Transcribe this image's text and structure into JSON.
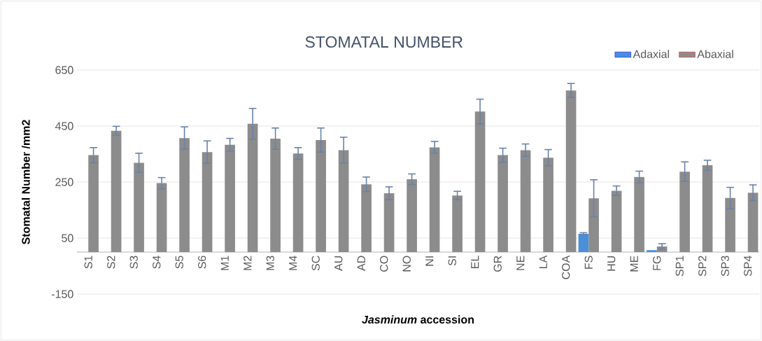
{
  "chart_data": {
    "type": "bar",
    "title": "STOMATAL NUMBER",
    "xlabel": "*Jasminum* accession",
    "ylabel": "Stomatal Number /mm2",
    "categories": [
      "S1",
      "S2",
      "S3",
      "S4",
      "S5",
      "S6",
      "M1",
      "M2",
      "M3",
      "M4",
      "SC",
      "AU",
      "AD",
      "CO",
      "NO",
      "NI",
      "SI",
      "EL",
      "GR",
      "NE",
      "LA",
      "COA",
      "FS",
      "HU",
      "ME",
      "FG",
      "SP1",
      "SP2",
      "SP3",
      "SP4"
    ],
    "series": [
      {
        "name": "Adaxial",
        "color": "#4a8fd8",
        "values": [
          null,
          null,
          null,
          null,
          null,
          null,
          null,
          null,
          null,
          null,
          null,
          null,
          null,
          null,
          null,
          null,
          null,
          null,
          null,
          null,
          null,
          null,
          65,
          null,
          null,
          7,
          null,
          null,
          null,
          null
        ],
        "errors": [
          null,
          null,
          null,
          null,
          null,
          null,
          null,
          null,
          null,
          null,
          null,
          null,
          null,
          null,
          null,
          null,
          null,
          null,
          null,
          null,
          null,
          null,
          4,
          null,
          null,
          null,
          null,
          null,
          null,
          null
        ]
      },
      {
        "name": "Abaxial",
        "color": "#8c8c8c",
        "values": [
          346,
          433,
          319,
          246,
          407,
          357,
          383,
          458,
          405,
          352,
          400,
          364,
          242,
          210,
          260,
          374,
          202,
          502,
          346,
          364,
          337,
          577,
          192,
          219,
          268,
          20,
          287,
          310,
          193,
          212
        ],
        "errors": [
          27,
          16,
          34,
          20,
          40,
          40,
          23,
          55,
          38,
          21,
          43,
          46,
          26,
          23,
          19,
          21,
          15,
          44,
          25,
          22,
          29,
          25,
          66,
          17,
          21,
          10,
          35,
          18,
          38,
          28
        ]
      }
    ],
    "ylim": [
      -150,
      650
    ],
    "yticks": [
      -150,
      50,
      250,
      450,
      650
    ],
    "grid": "y",
    "legend": "top right"
  }
}
